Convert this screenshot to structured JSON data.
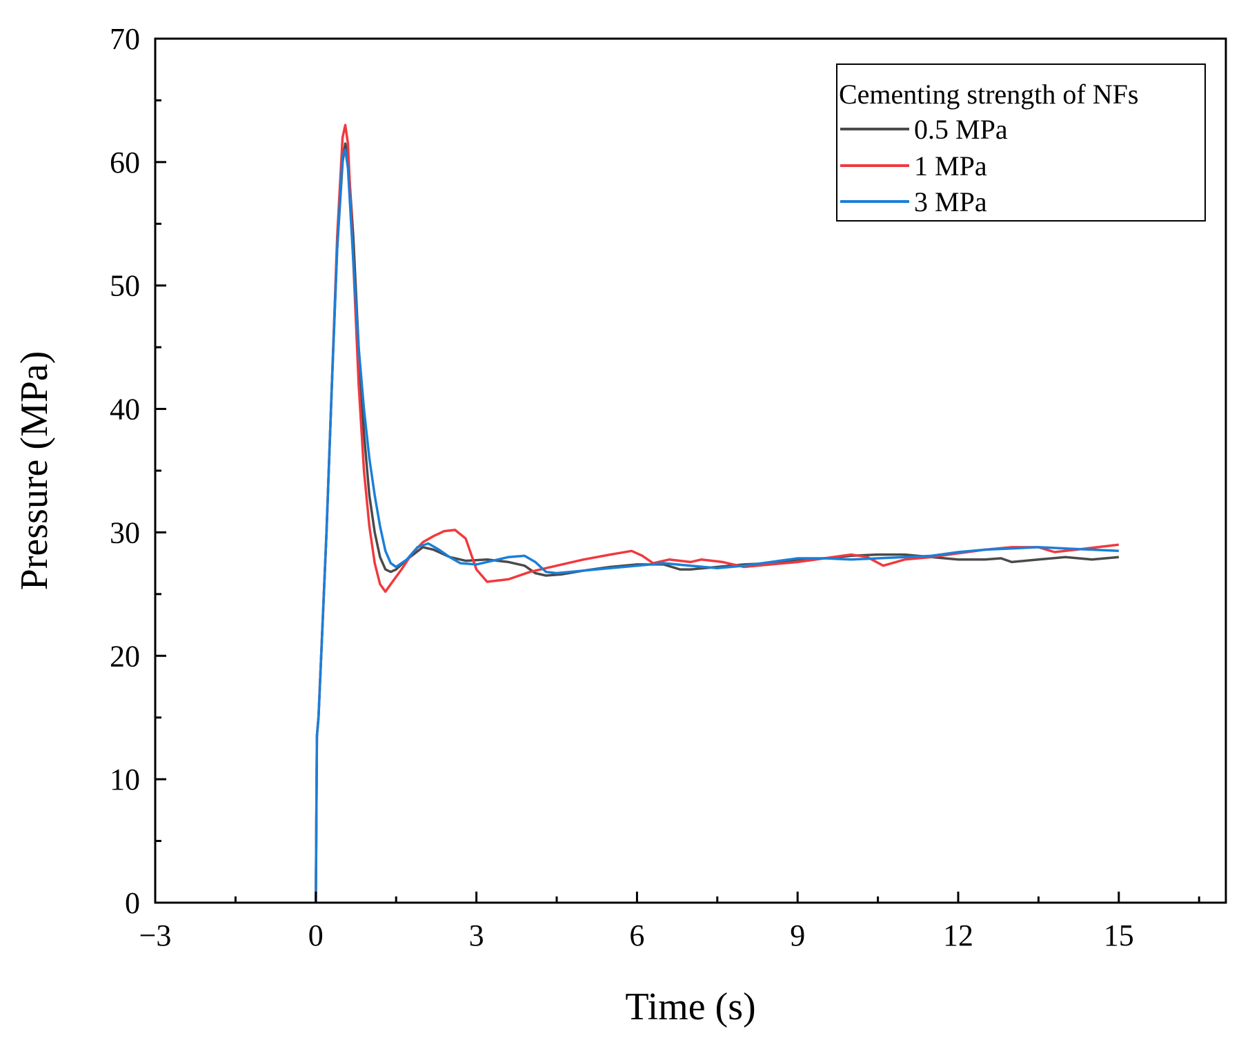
{
  "chart_data": {
    "type": "line",
    "title": "",
    "xlabel": "Time (s)",
    "ylabel": "Pressure (MPa)",
    "xlim": [
      -3,
      17
    ],
    "ylim": [
      0,
      70
    ],
    "xticks": [
      -3,
      0,
      3,
      6,
      9,
      12,
      15
    ],
    "xtick_labels": [
      "−3",
      "0",
      "3",
      "6",
      "9",
      "12",
      "15"
    ],
    "yticks": [
      0,
      10,
      20,
      30,
      40,
      50,
      60,
      70
    ],
    "ytick_labels": [
      "0",
      "10",
      "20",
      "30",
      "40",
      "50",
      "60",
      "70"
    ],
    "grid": false,
    "legend": {
      "title": "Cementing strength of NFs",
      "position": "top-right"
    },
    "series": [
      {
        "name": "0.5 MPa",
        "color": "#4a4a4a",
        "x": [
          0,
          0.02,
          0.05,
          0.1,
          0.2,
          0.3,
          0.4,
          0.5,
          0.55,
          0.6,
          0.7,
          0.8,
          0.9,
          1.0,
          1.1,
          1.2,
          1.3,
          1.4,
          1.5,
          1.7,
          2.0,
          2.2,
          2.5,
          2.8,
          3.2,
          3.6,
          3.9,
          4.1,
          4.3,
          4.6,
          5.0,
          5.5,
          6.0,
          6.5,
          6.8,
          7.0,
          7.5,
          8.0,
          8.5,
          9.0,
          9.5,
          10.0,
          10.5,
          11.0,
          11.5,
          12.0,
          12.5,
          12.8,
          13.0,
          13.5,
          14.0,
          14.5,
          15.0
        ],
        "values": [
          0,
          13.5,
          15,
          20,
          30,
          42,
          53,
          60,
          61.5,
          60.5,
          54,
          45,
          38,
          33,
          30,
          28,
          27,
          26.8,
          27,
          27.8,
          28.8,
          28.6,
          28,
          27.7,
          27.8,
          27.6,
          27.3,
          26.7,
          26.5,
          26.6,
          26.9,
          27.2,
          27.4,
          27.4,
          27,
          27,
          27.2,
          27.4,
          27.5,
          27.8,
          27.9,
          28.1,
          28.2,
          28.2,
          28,
          27.8,
          27.8,
          27.9,
          27.6,
          27.8,
          28,
          27.8,
          28
        ]
      },
      {
        "name": "1 MPa",
        "color": "#f0393d",
        "x": [
          0,
          0.02,
          0.05,
          0.1,
          0.2,
          0.3,
          0.4,
          0.5,
          0.55,
          0.6,
          0.7,
          0.8,
          0.9,
          1.0,
          1.1,
          1.2,
          1.3,
          1.4,
          1.6,
          1.8,
          2.0,
          2.2,
          2.4,
          2.6,
          2.8,
          3.0,
          3.2,
          3.6,
          4.0,
          4.5,
          5.0,
          5.5,
          5.9,
          6.1,
          6.3,
          6.6,
          7.0,
          7.2,
          7.6,
          8.0,
          8.5,
          9.0,
          9.5,
          10.0,
          10.3,
          10.6,
          11.0,
          11.5,
          12.0,
          12.5,
          13.0,
          13.5,
          13.8,
          14.2,
          14.6,
          15.0
        ],
        "values": [
          0,
          13.5,
          15,
          20,
          30,
          42,
          54,
          62,
          63,
          61.5,
          52,
          42,
          35,
          30.5,
          27.5,
          25.8,
          25.2,
          25.8,
          27,
          28.3,
          29.2,
          29.7,
          30.1,
          30.2,
          29.5,
          27,
          26,
          26.2,
          26.8,
          27.3,
          27.8,
          28.2,
          28.5,
          28.1,
          27.5,
          27.8,
          27.6,
          27.8,
          27.6,
          27.2,
          27.4,
          27.6,
          27.9,
          28.2,
          28,
          27.3,
          27.8,
          28,
          28.3,
          28.6,
          28.8,
          28.8,
          28.4,
          28.6,
          28.8,
          29
        ]
      },
      {
        "name": "3 MPa",
        "color": "#1a7fd8",
        "x": [
          0,
          0.02,
          0.05,
          0.1,
          0.2,
          0.3,
          0.4,
          0.5,
          0.55,
          0.6,
          0.7,
          0.8,
          0.9,
          1.0,
          1.1,
          1.2,
          1.3,
          1.4,
          1.5,
          1.7,
          1.9,
          2.1,
          2.3,
          2.5,
          2.7,
          3.0,
          3.3,
          3.6,
          3.9,
          4.1,
          4.3,
          4.5,
          5.0,
          5.5,
          6.0,
          6.5,
          7.0,
          7.5,
          8.0,
          8.5,
          9.0,
          9.5,
          10.0,
          10.5,
          11.0,
          11.5,
          12.0,
          12.5,
          13.0,
          13.5,
          14.0,
          14.5,
          15.0
        ],
        "values": [
          0,
          13.5,
          15,
          20,
          30,
          42,
          53,
          60.5,
          61,
          59.5,
          52,
          45,
          40,
          36,
          33,
          30.5,
          28.5,
          27.5,
          27.2,
          27.8,
          28.8,
          29.1,
          28.6,
          28,
          27.5,
          27.4,
          27.7,
          28,
          28.1,
          27.6,
          26.8,
          26.7,
          26.9,
          27.1,
          27.3,
          27.5,
          27.3,
          27.1,
          27.3,
          27.6,
          27.9,
          27.9,
          27.8,
          27.9,
          28,
          28.1,
          28.4,
          28.6,
          28.7,
          28.8,
          28.7,
          28.6,
          28.5
        ]
      }
    ]
  }
}
